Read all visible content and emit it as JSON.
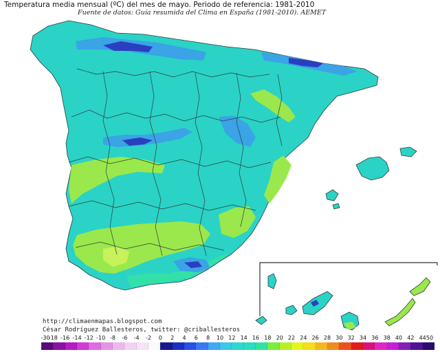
{
  "header": {
    "title": "Temperatura media mensual (ºC) del mes de mayo. Periodo de referencia: 1981-2010",
    "subtitle": "Fuente de datos: Guía resumida del Clima en España (1981-2010). AEMET"
  },
  "credits": {
    "website": "http://climaenmapas.blogspot.com",
    "author": "César Rodríguez Ballesteros, twitter: @criballesteros"
  },
  "legend": {
    "ticks": [
      "-30",
      "-18",
      "-16",
      "-14",
      "-12",
      "-10",
      "-8",
      "-6",
      "-4",
      "-2",
      "0",
      "2",
      "4",
      "6",
      "8",
      "10",
      "12",
      "14",
      "16",
      "18",
      "20",
      "22",
      "24",
      "26",
      "28",
      "30",
      "32",
      "34",
      "36",
      "38",
      "40",
      "42",
      "44",
      "50"
    ],
    "colors": [
      "#5a0a78",
      "#8a12a0",
      "#b21cc0",
      "#cf3cd6",
      "#dc6ee0",
      "#e496e6",
      "#ecb8ee",
      "#f0d2f2",
      "#f4e4f6",
      "#fafafa",
      "#1a1a8c",
      "#1e2ec4",
      "#2650e6",
      "#3a78f0",
      "#40a8f4",
      "#3cc8e8",
      "#2ed6cc",
      "#2adcc0",
      "#34e0a0",
      "#7aec3c",
      "#b6f02a",
      "#e6f41e",
      "#f4dc1e",
      "#f4b81e",
      "#f08c1e",
      "#ec501e",
      "#e01c1c",
      "#d8147c",
      "#e028c0",
      "#c420d8",
      "#8420b8",
      "#4e1498",
      "#2a0c6c"
    ]
  },
  "map": {
    "colors": {
      "background": "#ffffff",
      "base": "#2ad3c6",
      "mountain": "#3aa4e6",
      "peak": "#2a3fbf",
      "warm": "#9be84c",
      "hot": "#c8f25a",
      "coast": "#32e1a8",
      "border": "#2a3a3a",
      "inset_frame": "#333333"
    }
  }
}
